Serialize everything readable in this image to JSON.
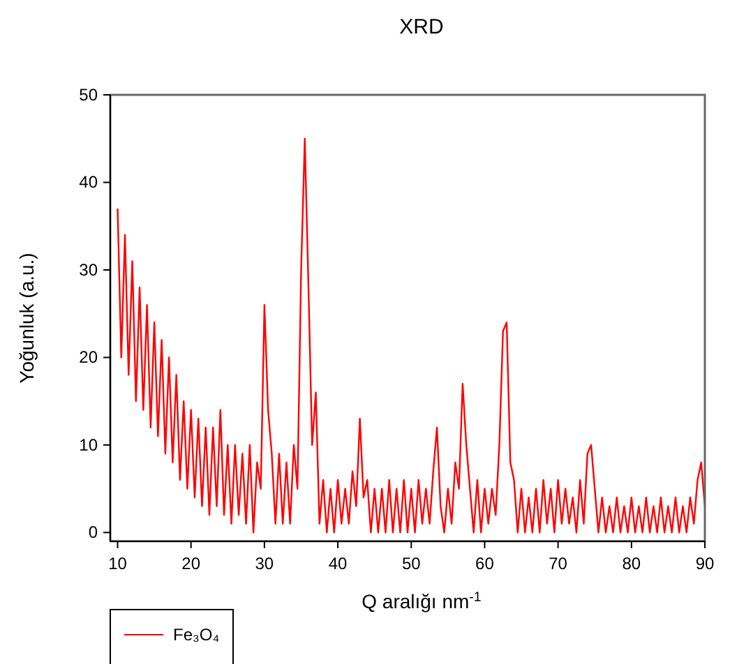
{
  "chart_data": {
    "type": "line",
    "title": "XRD",
    "xlabel": "Q aralığı nm$^{-1}$",
    "ylabel": "Yoğunluk (a.u.)",
    "xlim": [
      9,
      90
    ],
    "xticks": [
      10,
      20,
      30,
      40,
      50,
      60,
      70,
      80,
      90
    ],
    "ylim": [
      -1,
      50
    ],
    "yticks": [
      0,
      10,
      20,
      30,
      40,
      50
    ],
    "grid": false,
    "legend": "bottom left",
    "line_style": "solid",
    "marker": "none",
    "series": [
      {
        "name": "Fe₃O₄",
        "color": "#ff0000",
        "x": [
          10,
          10.5,
          11,
          11.5,
          12,
          12.5,
          13,
          13.5,
          14,
          14.5,
          15,
          15.5,
          16,
          16.5,
          17,
          17.5,
          18,
          18.5,
          19,
          19.5,
          20,
          20.5,
          21,
          21.5,
          22,
          22.5,
          23,
          23.5,
          24,
          24.5,
          25,
          25.5,
          26,
          26.5,
          27,
          27.5,
          28,
          28.5,
          29,
          29.5,
          30,
          30.5,
          31,
          31.5,
          32,
          32.5,
          33,
          33.5,
          34,
          34.5,
          35,
          35.5,
          36,
          36.5,
          37,
          37.5,
          38,
          38.5,
          39,
          39.5,
          40,
          40.5,
          41,
          41.5,
          42,
          42.5,
          43,
          43.5,
          44,
          44.5,
          45,
          45.5,
          46,
          46.5,
          47,
          47.5,
          48,
          48.5,
          49,
          49.5,
          50,
          50.5,
          51,
          51.5,
          52,
          52.5,
          53,
          53.5,
          54,
          54.5,
          55,
          55.5,
          56,
          56.5,
          57,
          57.5,
          58,
          58.5,
          59,
          59.5,
          60,
          60.5,
          61,
          61.5,
          62,
          62.5,
          63,
          63.5,
          64,
          64.5,
          65,
          65.5,
          66,
          66.5,
          67,
          67.5,
          68,
          68.5,
          69,
          69.5,
          70,
          70.5,
          71,
          71.5,
          72,
          72.5,
          73,
          73.5,
          74,
          74.5,
          75,
          75.5,
          76,
          76.5,
          77,
          77.5,
          78,
          78.5,
          79,
          79.5,
          80,
          80.5,
          81,
          81.5,
          82,
          82.5,
          83,
          83.5,
          84,
          84.5,
          85,
          85.5,
          86,
          86.5,
          87,
          87.5,
          88,
          88.5,
          89,
          89.5,
          90
        ],
        "values": [
          37,
          20,
          34,
          18,
          31,
          15,
          28,
          14,
          26,
          12,
          24,
          11,
          22,
          9,
          20,
          8,
          18,
          6,
          15,
          5,
          14,
          4,
          13,
          3,
          12,
          2,
          12,
          3,
          14,
          2,
          10,
          1,
          10,
          2,
          9,
          1,
          10,
          0,
          8,
          5,
          26,
          14,
          9,
          1,
          9,
          1,
          8,
          1,
          10,
          5,
          30,
          45,
          28,
          10,
          16,
          1,
          6,
          0,
          5,
          0,
          6,
          1,
          5,
          1,
          7,
          3,
          13,
          4,
          6,
          0,
          5,
          0,
          5,
          0,
          6,
          0,
          5,
          0,
          6,
          0,
          5,
          0,
          6,
          1,
          5,
          1,
          7,
          12,
          3,
          0,
          5,
          1,
          8,
          5,
          17,
          10,
          5,
          0,
          6,
          0,
          5,
          1,
          5,
          2,
          10,
          23,
          24,
          8,
          6,
          0,
          5,
          0,
          4,
          0,
          5,
          0,
          6,
          1,
          5,
          0,
          6,
          1,
          5,
          1,
          4,
          0,
          6,
          1,
          9,
          10,
          5,
          0,
          4,
          0,
          3,
          0,
          4,
          0,
          3,
          0,
          4,
          0,
          3,
          0,
          4,
          0,
          3,
          0,
          4,
          0,
          3,
          0,
          4,
          0,
          3,
          0,
          4,
          1,
          6,
          8,
          3
        ]
      }
    ]
  }
}
